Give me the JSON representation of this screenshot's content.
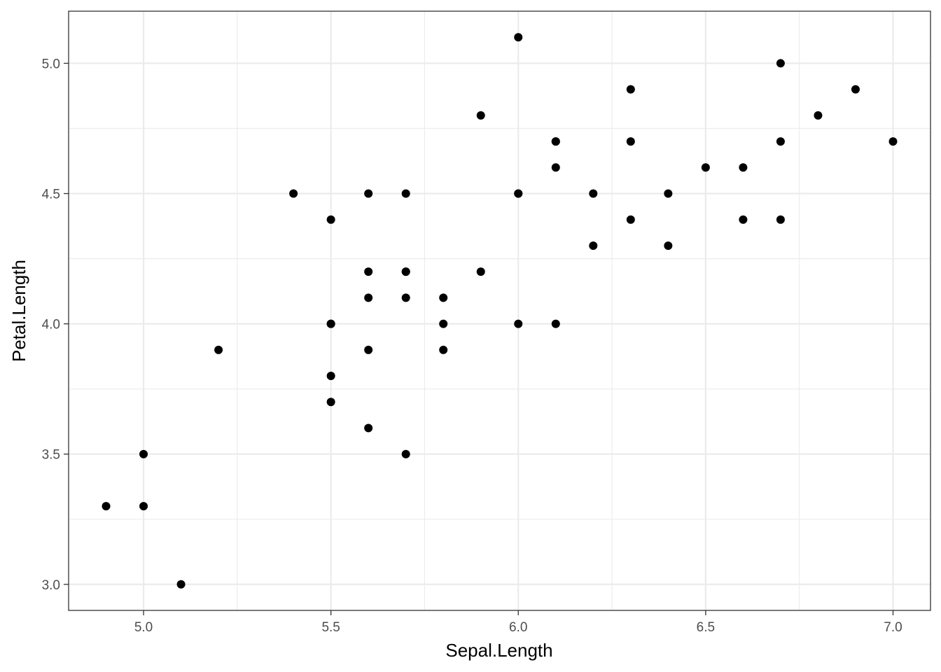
{
  "chart_data": {
    "type": "scatter",
    "title": "",
    "xlabel": "Sepal.Length",
    "ylabel": "Petal.Length",
    "xlim": [
      4.8,
      7.1
    ],
    "ylim": [
      2.9,
      5.2
    ],
    "x_ticks": [
      5.0,
      5.5,
      6.0,
      6.5,
      7.0
    ],
    "x_tick_labels": [
      "5.0",
      "5.5",
      "6.0",
      "6.5",
      "7.0"
    ],
    "y_ticks": [
      3.0,
      3.5,
      4.0,
      4.5,
      5.0
    ],
    "y_tick_labels": [
      "3.0",
      "3.5",
      "4.0",
      "4.5",
      "5.0"
    ],
    "x_minor": [
      5.25,
      5.75,
      6.25,
      6.75
    ],
    "y_minor": [
      3.25,
      3.75,
      4.25,
      4.75
    ],
    "grid": true,
    "legend": "none",
    "point_color": "#000000",
    "points": [
      {
        "x": 7.0,
        "y": 4.7
      },
      {
        "x": 6.4,
        "y": 4.5
      },
      {
        "x": 6.9,
        "y": 4.9
      },
      {
        "x": 5.5,
        "y": 4.0
      },
      {
        "x": 6.5,
        "y": 4.6
      },
      {
        "x": 5.7,
        "y": 4.5
      },
      {
        "x": 6.3,
        "y": 4.7
      },
      {
        "x": 4.9,
        "y": 3.3
      },
      {
        "x": 6.6,
        "y": 4.6
      },
      {
        "x": 5.2,
        "y": 3.9
      },
      {
        "x": 5.0,
        "y": 3.5
      },
      {
        "x": 5.9,
        "y": 4.2
      },
      {
        "x": 6.0,
        "y": 4.0
      },
      {
        "x": 6.1,
        "y": 4.7
      },
      {
        "x": 5.6,
        "y": 3.6
      },
      {
        "x": 6.7,
        "y": 4.4
      },
      {
        "x": 5.6,
        "y": 4.5
      },
      {
        "x": 5.8,
        "y": 4.1
      },
      {
        "x": 6.2,
        "y": 4.5
      },
      {
        "x": 5.6,
        "y": 3.9
      },
      {
        "x": 5.9,
        "y": 4.8
      },
      {
        "x": 6.1,
        "y": 4.0
      },
      {
        "x": 6.3,
        "y": 4.9
      },
      {
        "x": 6.1,
        "y": 4.7
      },
      {
        "x": 6.4,
        "y": 4.3
      },
      {
        "x": 6.6,
        "y": 4.4
      },
      {
        "x": 6.8,
        "y": 4.8
      },
      {
        "x": 6.7,
        "y": 5.0
      },
      {
        "x": 6.0,
        "y": 4.5
      },
      {
        "x": 5.7,
        "y": 3.5
      },
      {
        "x": 5.5,
        "y": 3.8
      },
      {
        "x": 5.5,
        "y": 3.7
      },
      {
        "x": 5.8,
        "y": 3.9
      },
      {
        "x": 6.0,
        "y": 5.1
      },
      {
        "x": 5.4,
        "y": 4.5
      },
      {
        "x": 6.0,
        "y": 4.5
      },
      {
        "x": 6.7,
        "y": 4.7
      },
      {
        "x": 6.3,
        "y": 4.4
      },
      {
        "x": 5.6,
        "y": 4.1
      },
      {
        "x": 5.5,
        "y": 4.0
      },
      {
        "x": 5.5,
        "y": 4.4
      },
      {
        "x": 6.1,
        "y": 4.6
      },
      {
        "x": 5.8,
        "y": 4.0
      },
      {
        "x": 5.0,
        "y": 3.3
      },
      {
        "x": 5.6,
        "y": 4.2
      },
      {
        "x": 5.7,
        "y": 4.2
      },
      {
        "x": 5.7,
        "y": 4.2
      },
      {
        "x": 6.2,
        "y": 4.3
      },
      {
        "x": 5.1,
        "y": 3.0
      },
      {
        "x": 5.7,
        "y": 4.1
      }
    ]
  }
}
